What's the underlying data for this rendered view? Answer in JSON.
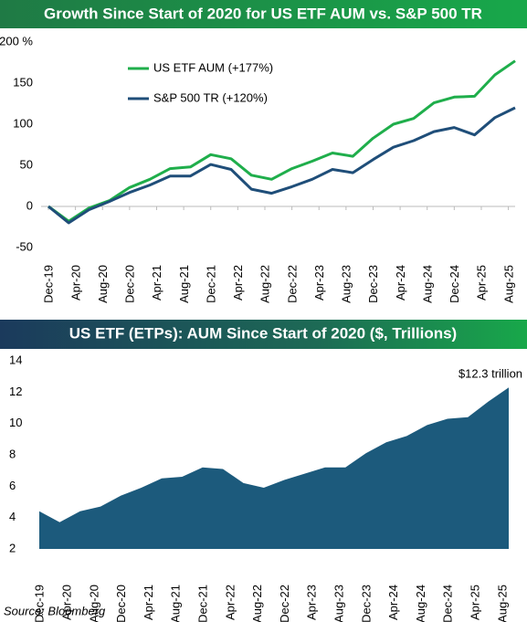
{
  "chart_data": [
    {
      "type": "line",
      "title": "Growth Since Start of 2020 for US ETF AUM vs. S&P 500 TR",
      "x": [
        "Dec-19",
        "Mar-20",
        "Jun-20",
        "Sep-20",
        "Dec-20",
        "Mar-21",
        "Jun-21",
        "Sep-21",
        "Dec-21",
        "Mar-22",
        "Jun-22",
        "Sep-22",
        "Dec-22",
        "Mar-23",
        "Jun-23",
        "Sep-23",
        "Dec-23",
        "Mar-24",
        "Jun-24",
        "Sep-24",
        "Dec-24",
        "Mar-25",
        "Jun-25",
        "Sep-25"
      ],
      "xlim": [
        "Dec-19",
        "Sep-25"
      ],
      "xticks": [
        "Dec-19",
        "Apr-20",
        "Aug-20",
        "Dec-20",
        "Apr-21",
        "Aug-21",
        "Dec-21",
        "Apr-22",
        "Aug-22",
        "Dec-22",
        "Apr-23",
        "Aug-23",
        "Dec-23",
        "Apr-24",
        "Aug-24",
        "Dec-24",
        "Apr-25",
        "Aug-25"
      ],
      "ylim": [
        -50,
        200
      ],
      "yticks": [
        {
          "value": 200,
          "label": "200 %"
        },
        150,
        100,
        50,
        0,
        -50
      ],
      "legend": "top-left",
      "series": [
        {
          "name": "US ETF AUM (+177%)",
          "color": "#1fae4b",
          "values": [
            0,
            -18,
            -2,
            7,
            23,
            33,
            46,
            48,
            63,
            58,
            38,
            33,
            46,
            55,
            65,
            61,
            83,
            100,
            107,
            126,
            133,
            134,
            160,
            177
          ]
        },
        {
          "name": "S&P 500 TR (+120%)",
          "color": "#1f4e79",
          "values": [
            0,
            -20,
            -4,
            6,
            17,
            26,
            37,
            37,
            51,
            45,
            21,
            16,
            24,
            33,
            45,
            41,
            57,
            72,
            80,
            91,
            96,
            87,
            108,
            120
          ]
        }
      ]
    },
    {
      "type": "area",
      "title": "US ETF (ETPs): AUM Since Start of 2020 ($, Trillions)",
      "x": [
        "Dec-19",
        "Mar-20",
        "Jun-20",
        "Sep-20",
        "Dec-20",
        "Mar-21",
        "Jun-21",
        "Sep-21",
        "Dec-21",
        "Mar-22",
        "Jun-22",
        "Sep-22",
        "Dec-22",
        "Mar-23",
        "Jun-23",
        "Sep-23",
        "Dec-23",
        "Mar-24",
        "Jun-24",
        "Sep-24",
        "Dec-24",
        "Mar-25",
        "Jun-25",
        "Sep-25"
      ],
      "xlim": [
        "Dec-19",
        "Sep-25"
      ],
      "xticks": [
        "Dec-19",
        "Apr-20",
        "Aug-20",
        "Dec-20",
        "Apr-21",
        "Aug-21",
        "Dec-21",
        "Apr-22",
        "Aug-22",
        "Dec-22",
        "Apr-23",
        "Aug-23",
        "Dec-23",
        "Apr-24",
        "Aug-24",
        "Dec-24",
        "Apr-25",
        "Aug-25"
      ],
      "ylim": [
        2,
        14
      ],
      "yticks": [
        14,
        12,
        10,
        8,
        6,
        4,
        2
      ],
      "color": "#1c5a7c",
      "values": [
        4.4,
        3.7,
        4.4,
        4.7,
        5.4,
        5.9,
        6.5,
        6.6,
        7.2,
        7.1,
        6.2,
        5.9,
        6.4,
        6.8,
        7.2,
        7.2,
        8.1,
        8.8,
        9.2,
        9.9,
        10.3,
        10.4,
        11.4,
        12.3
      ],
      "annotation": "$12.3 trillion"
    }
  ],
  "source": "Source: Bloomberg"
}
